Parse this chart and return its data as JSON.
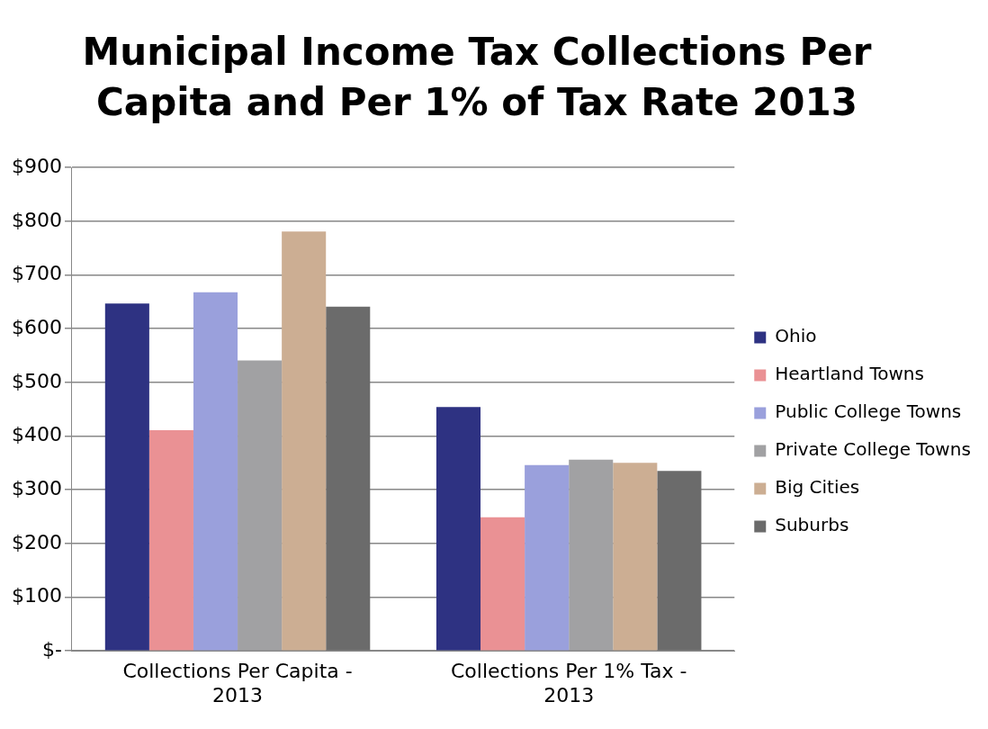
{
  "chart_data": {
    "type": "bar",
    "title": "Municipal Income Tax Collections Per Capita and Per 1% of Tax Rate 2013",
    "categories": [
      "Collections Per Capita - 2013",
      "Collections Per 1% Tax - 2013"
    ],
    "series": [
      {
        "name": "Ohio",
        "color": "#2e3282",
        "values": [
          647,
          454
        ]
      },
      {
        "name": "Heartland Towns",
        "color": "#ea9194",
        "values": [
          411,
          249
        ]
      },
      {
        "name": "Public College Towns",
        "color": "#9aa0dc",
        "values": [
          668,
          346
        ]
      },
      {
        "name": "Private College Towns",
        "color": "#a1a1a3",
        "values": [
          541,
          356
        ]
      },
      {
        "name": "Big Cities",
        "color": "#ccae93",
        "values": [
          781,
          350
        ]
      },
      {
        "name": "Suburbs",
        "color": "#6b6b6b",
        "values": [
          641,
          335
        ]
      }
    ],
    "ylim": [
      0,
      900
    ],
    "yticks": [
      {
        "value": 0,
        "label": "$-"
      },
      {
        "value": 100,
        "label": "$100"
      },
      {
        "value": 200,
        "label": "$200"
      },
      {
        "value": 300,
        "label": "$300"
      },
      {
        "value": 400,
        "label": "$400"
      },
      {
        "value": 500,
        "label": "$500"
      },
      {
        "value": 600,
        "label": "$600"
      },
      {
        "value": 700,
        "label": "$700"
      },
      {
        "value": 800,
        "label": "$800"
      },
      {
        "value": 900,
        "label": "$900"
      }
    ],
    "grid": "y",
    "legend": "right"
  }
}
